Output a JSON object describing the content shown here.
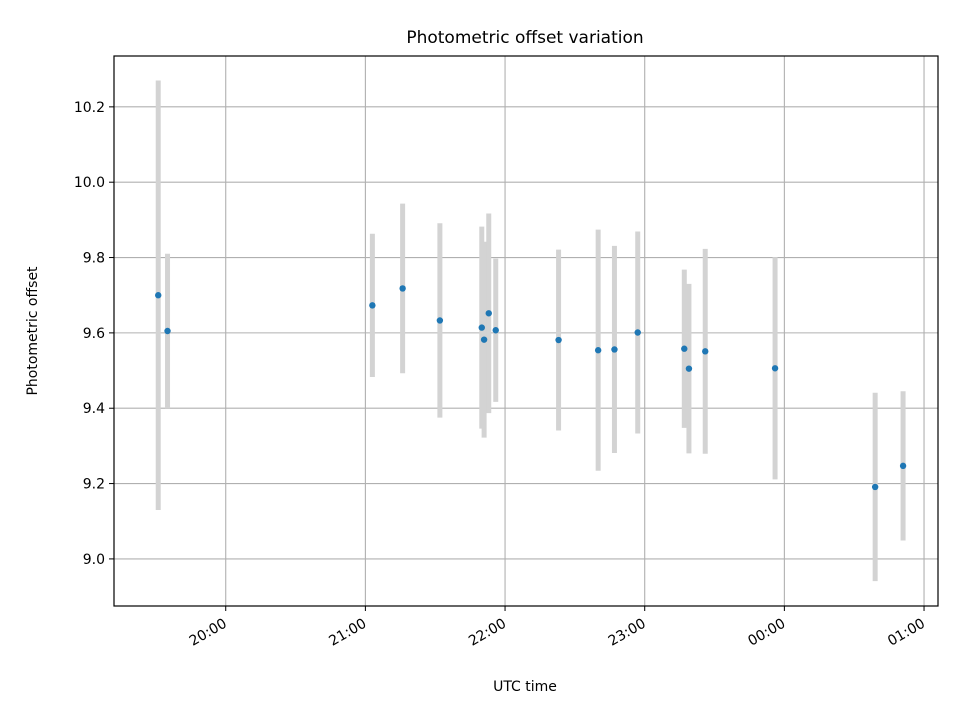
{
  "chart_data": {
    "type": "scatter",
    "title": "Photometric offset variation",
    "xlabel": "UTC time",
    "ylabel": "Photometric offset",
    "x_unit": "UTC clock time (wraps past midnight)",
    "xlim": [
      "19:12",
      "01:06"
    ],
    "ylim": [
      8.875,
      10.335
    ],
    "x_ticks": [
      "20:00",
      "21:00",
      "22:00",
      "23:00",
      "00:00",
      "01:00"
    ],
    "y_ticks": [
      "9.0",
      "9.2",
      "9.4",
      "9.6",
      "9.8",
      "10.0",
      "10.2"
    ],
    "grid": true,
    "legend": "none",
    "colors": {
      "point": "#1f77b4",
      "errorbar": "#d3d3d3",
      "grid": "#b0b0b0"
    },
    "points": [
      {
        "time": "19:31",
        "y": 9.7,
        "err": 0.57
      },
      {
        "time": "19:35",
        "y": 9.605,
        "err": 0.205
      },
      {
        "time": "21:03",
        "y": 9.673,
        "err": 0.19
      },
      {
        "time": "21:16",
        "y": 9.718,
        "err": 0.225
      },
      {
        "time": "21:32",
        "y": 9.633,
        "err": 0.258
      },
      {
        "time": "21:50",
        "y": 9.614,
        "err": 0.268
      },
      {
        "time": "21:51",
        "y": 9.582,
        "err": 0.26
      },
      {
        "time": "21:53",
        "y": 9.652,
        "err": 0.265
      },
      {
        "time": "21:56",
        "y": 9.607,
        "err": 0.19
      },
      {
        "time": "22:23",
        "y": 9.581,
        "err": 0.24
      },
      {
        "time": "22:40",
        "y": 9.554,
        "err": 0.32
      },
      {
        "time": "22:47",
        "y": 9.556,
        "err": 0.275
      },
      {
        "time": "22:57",
        "y": 9.601,
        "err": 0.268
      },
      {
        "time": "23:17",
        "y": 9.558,
        "err": 0.21
      },
      {
        "time": "23:19",
        "y": 9.505,
        "err": 0.225
      },
      {
        "time": "23:26",
        "y": 9.551,
        "err": 0.272
      },
      {
        "time": "23:56",
        "y": 9.506,
        "err": 0.295
      },
      {
        "time": "00:39",
        "y": 9.191,
        "err": 0.25
      },
      {
        "time": "00:51",
        "y": 9.247,
        "err": 0.198
      }
    ]
  }
}
